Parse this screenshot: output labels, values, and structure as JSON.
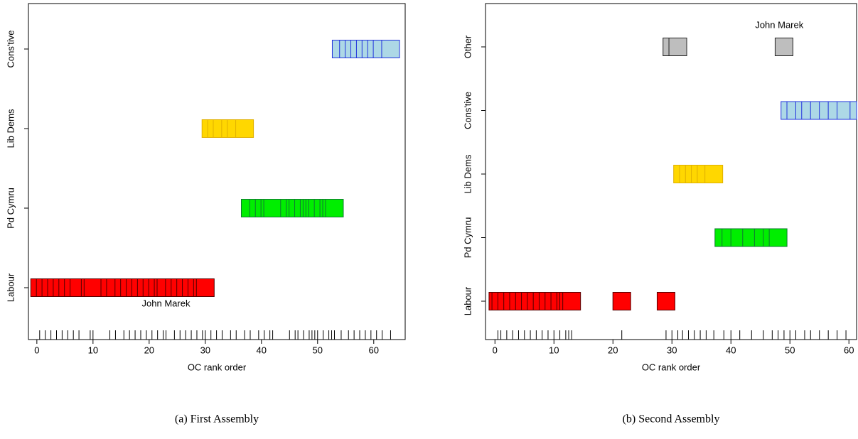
{
  "chart_data": [
    {
      "type": "scatter",
      "caption": "(a) First Assembly",
      "x_label": "OC rank order",
      "xlim": [
        -1.5,
        65.6
      ],
      "xticks": [
        0,
        10,
        20,
        30,
        40,
        50,
        60
      ],
      "series": [
        {
          "name": "Labour",
          "color": "#ff0000",
          "values": [
            0.5,
            1.5,
            2.5,
            3.5,
            4.5,
            5.5,
            6.5,
            7.5,
            9.5,
            10,
            13,
            14,
            15.5,
            16.5,
            17.5,
            18.5,
            19.5,
            20.5,
            21.5,
            22.5,
            23,
            24.5,
            25.5,
            26.5,
            27.5,
            28.5,
            29.5,
            30
          ]
        },
        {
          "name": "Pd Cymru",
          "color": "#00ee00",
          "values": [
            38,
            39.5,
            40.5,
            41.5,
            42,
            45,
            46,
            46.5,
            47.5,
            48.5,
            49,
            49.5,
            50,
            51,
            52,
            52.5,
            53
          ]
        },
        {
          "name": "Lib Dems",
          "color": "#ffd700",
          "values": [
            31,
            32,
            33,
            34.5,
            35.5,
            37
          ]
        },
        {
          "name": "Cons'tive",
          "color": "#add8e6",
          "values": [
            54.2,
            55.5,
            56.5,
            57.5,
            58.5,
            59.5,
            60.5,
            61.5,
            63
          ]
        }
      ],
      "annotation": {
        "text": "John Marek",
        "x": 23
      }
    },
    {
      "type": "scatter",
      "caption": "(b) Second Assembly",
      "x_label": "OC rank order",
      "xlim": [
        -1.6,
        61.3
      ],
      "xticks": [
        0,
        10,
        20,
        30,
        40,
        50,
        60
      ],
      "series": [
        {
          "name": "Labour",
          "color": "#ff0000",
          "values": [
            0.5,
            1,
            2,
            3,
            4,
            5,
            6,
            7,
            8,
            9,
            10,
            11,
            12,
            12.5,
            13,
            21.5,
            29
          ]
        },
        {
          "name": "Pd Cymru",
          "color": "#00ee00",
          "values": [
            38.8,
            40,
            41.5,
            43.5,
            45.5,
            47,
            48
          ]
        },
        {
          "name": "Lib Dems",
          "color": "#ffd700",
          "values": [
            31.8,
            32.8,
            33.8,
            34.8,
            35.8,
            37.1
          ]
        },
        {
          "name": "Cons'tive",
          "color": "#add8e6",
          "values": [
            50,
            51,
            52.5,
            53.5,
            55,
            56.5,
            58,
            59.5,
            61.7
          ]
        },
        {
          "name": "Other",
          "color": "#bebebe",
          "values": [
            30,
            31,
            49
          ]
        }
      ],
      "annotation": {
        "text": "John Marek",
        "x": 48.2
      }
    }
  ]
}
